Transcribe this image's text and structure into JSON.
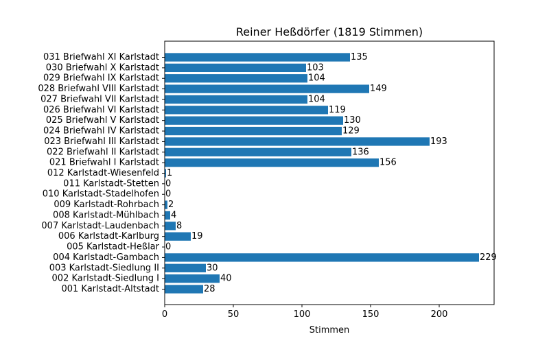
{
  "chart_data": {
    "type": "bar",
    "orientation": "horizontal",
    "title": "Reiner Heßdörfer (1819 Stimmen)",
    "xlabel": "Stimmen",
    "ylabel": "",
    "xlim": [
      0,
      240
    ],
    "xticks": [
      0,
      50,
      100,
      150,
      200
    ],
    "grid": false,
    "bar_color": "#1f77b4",
    "categories": [
      "001 Karlstadt-Altstadt",
      "002 Karlstadt-Siedlung I",
      "003 Karlstadt-Siedlung II",
      "004 Karlstadt-Gambach",
      "005 Karlstadt-Heßlar",
      "006 Karlstadt-Karlburg",
      "007 Karlstadt-Laudenbach",
      "008 Karlstadt-Mühlbach",
      "009 Karlstadt-Rohrbach",
      "010 Karlstadt-Stadelhofen",
      "011 Karlstadt-Stetten",
      "012 Karlstadt-Wiesenfeld",
      "021 Briefwahl I Karlstadt",
      "022 Briefwahl II Karlstadt",
      "023 Briefwahl III Karlstadt",
      "024 Briefwahl IV Karlstadt",
      "025 Briefwahl V Karlstadt",
      "026 Briefwahl VI Karlstadt",
      "027 Briefwahl VII Karlstadt",
      "028 Briefwahl VIII Karlstadt",
      "029 Briefwahl IX Karlstadt",
      "030 Briefwahl X Karlstadt",
      "031 Briefwahl XI Karlstadt"
    ],
    "values": [
      28,
      40,
      30,
      229,
      0,
      19,
      8,
      4,
      2,
      0,
      0,
      1,
      156,
      136,
      193,
      129,
      130,
      119,
      104,
      149,
      104,
      103,
      135
    ]
  }
}
